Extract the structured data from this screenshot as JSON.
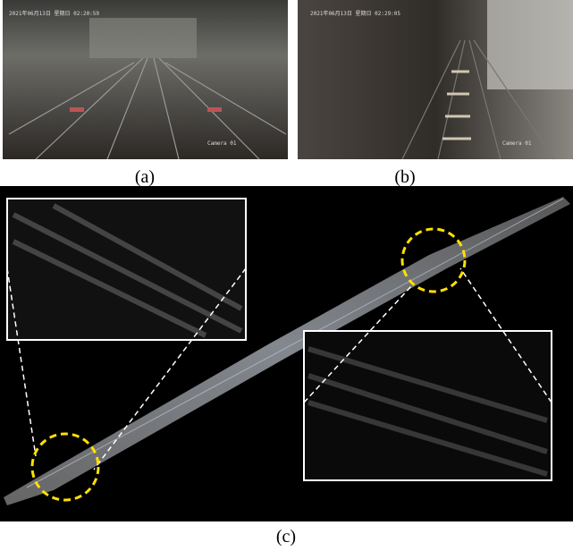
{
  "panels": [
    {
      "label": "(a)",
      "timestamp": "2021年06月13日 星期日 02:20:59",
      "camera": "Camera 01"
    },
    {
      "label": "(b)",
      "timestamp": "2021年06月13日 星期日 02:29:05",
      "camera": "Camera 01"
    },
    {
      "label": "(c)"
    }
  ]
}
